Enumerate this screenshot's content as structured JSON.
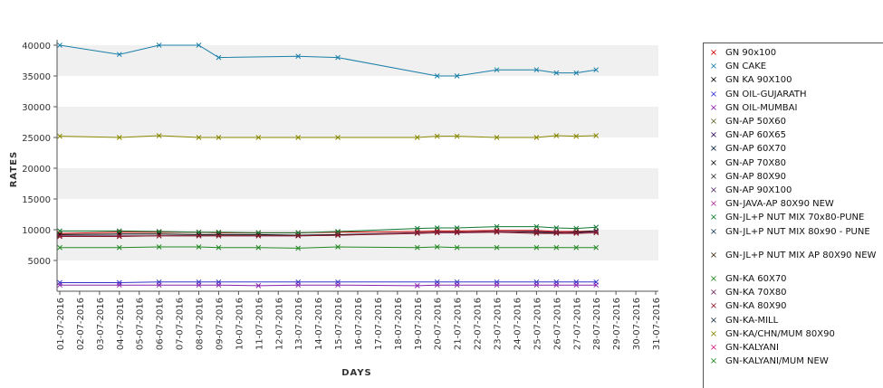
{
  "chart_data": {
    "type": "line",
    "title": "",
    "xlabel": "DAYS",
    "ylabel": "RATES",
    "ylim": [
      0,
      40000
    ],
    "yticks": [
      5000,
      10000,
      15000,
      20000,
      25000,
      30000,
      35000,
      40000
    ],
    "categories": [
      "01-07-2016",
      "02-07-2016",
      "03-07-2016",
      "04-07-2016",
      "05-07-2016",
      "06-07-2016",
      "07-07-2016",
      "08-07-2016",
      "09-07-2016",
      "10-07-2016",
      "11-07-2016",
      "12-07-2016",
      "13-07-2016",
      "14-07-2016",
      "15-07-2016",
      "16-07-2016",
      "17-07-2016",
      "18-07-2016",
      "19-07-2016",
      "20-07-2016",
      "21-07-2016",
      "22-07-2016",
      "23-07-2016",
      "24-07-2016",
      "25-07-2016",
      "26-07-2016",
      "27-07-2016",
      "28-07-2016",
      "29-07-2016",
      "30-07-2016",
      "31-07-2016"
    ],
    "grid": "alternating horizontal bands",
    "legend_position": "right",
    "series": [
      {
        "name": "GN 90x100",
        "color": "#cc0000",
        "values": [
          9400,
          null,
          null,
          9600,
          null,
          9600,
          null,
          9600,
          9500,
          null,
          9500,
          null,
          9500,
          null,
          9600,
          null,
          null,
          null,
          9700,
          9800,
          9800,
          null,
          9900,
          null,
          9900,
          9700,
          9700,
          9800,
          null,
          null,
          null
        ]
      },
      {
        "name": "GN CAKE",
        "color": "#1a7fa8",
        "values": [
          40000,
          null,
          null,
          38500,
          null,
          40000,
          null,
          40000,
          38000,
          null,
          null,
          null,
          38200,
          null,
          38000,
          null,
          null,
          null,
          null,
          35000,
          35000,
          null,
          36000,
          null,
          36000,
          35500,
          35500,
          36000,
          null,
          null,
          null
        ]
      },
      {
        "name": "GN KA 90X100",
        "color": "#000000",
        "values": [
          9200,
          null,
          null,
          9300,
          null,
          9300,
          null,
          9200,
          9200,
          null,
          9200,
          null,
          9100,
          null,
          9200,
          null,
          null,
          null,
          9500,
          9600,
          9600,
          null,
          9700,
          null,
          9600,
          9500,
          9600,
          9800,
          null,
          null,
          null
        ]
      },
      {
        "name": "GN OIL-GUJARATH",
        "color": "#3333cc",
        "values": [
          1400,
          null,
          null,
          1400,
          null,
          1500,
          null,
          1500,
          1500,
          null,
          null,
          null,
          1500,
          null,
          1500,
          null,
          null,
          null,
          null,
          1500,
          1500,
          null,
          1500,
          null,
          1500,
          1500,
          1500,
          1500,
          null,
          null,
          null
        ]
      },
      {
        "name": "GN OIL-MUMBAI",
        "color": "#8822aa",
        "values": [
          1000,
          null,
          null,
          1000,
          null,
          1000,
          null,
          1000,
          1000,
          null,
          900,
          null,
          1000,
          null,
          1000,
          null,
          null,
          null,
          900,
          1000,
          1000,
          null,
          1000,
          null,
          1000,
          1000,
          1000,
          1000,
          null,
          null,
          null
        ]
      },
      {
        "name": "GN-AP 50X60",
        "color": "#666633",
        "values": [
          null,
          null,
          null,
          null,
          null,
          null,
          null,
          null,
          null,
          null,
          null,
          null,
          null,
          null,
          null,
          null,
          null,
          null,
          null,
          null,
          null,
          null,
          null,
          null,
          null,
          null,
          null,
          null,
          null,
          null,
          null
        ]
      },
      {
        "name": "GN-AP 60X65",
        "color": "#2b0a55",
        "values": [
          null,
          null,
          null,
          null,
          null,
          null,
          null,
          null,
          null,
          null,
          null,
          null,
          null,
          null,
          null,
          null,
          null,
          null,
          null,
          null,
          null,
          null,
          null,
          null,
          null,
          null,
          null,
          null,
          null,
          null,
          null
        ]
      },
      {
        "name": "GN-AP 60X70",
        "color": "#0a2040",
        "values": [
          null,
          null,
          null,
          null,
          null,
          null,
          null,
          null,
          null,
          null,
          null,
          null,
          null,
          null,
          null,
          null,
          null,
          null,
          null,
          null,
          null,
          null,
          null,
          null,
          null,
          null,
          null,
          null,
          null,
          null,
          null
        ]
      },
      {
        "name": "GN-AP 70X80",
        "color": "#111111",
        "values": [
          null,
          null,
          null,
          null,
          null,
          null,
          null,
          null,
          null,
          null,
          null,
          null,
          null,
          null,
          null,
          null,
          null,
          null,
          null,
          null,
          null,
          null,
          null,
          null,
          null,
          null,
          null,
          null,
          null,
          null,
          null
        ]
      },
      {
        "name": "GN-AP 80X90",
        "color": "#333333",
        "values": [
          null,
          null,
          null,
          null,
          null,
          null,
          null,
          null,
          null,
          null,
          null,
          null,
          null,
          null,
          null,
          null,
          null,
          null,
          null,
          null,
          null,
          null,
          null,
          null,
          null,
          null,
          null,
          null,
          null,
          null,
          null
        ]
      },
      {
        "name": "GN-AP 90X100",
        "color": "#553366",
        "values": [
          null,
          null,
          null,
          null,
          null,
          null,
          null,
          null,
          null,
          null,
          null,
          null,
          null,
          null,
          null,
          null,
          null,
          null,
          null,
          null,
          null,
          null,
          null,
          null,
          null,
          null,
          null,
          null,
          null,
          null,
          null
        ]
      },
      {
        "name": "GN-JAVA-AP 80X90 NEW",
        "color": "#aa3399",
        "values": [
          null,
          null,
          null,
          null,
          null,
          null,
          null,
          null,
          null,
          null,
          null,
          null,
          null,
          null,
          null,
          null,
          null,
          null,
          null,
          null,
          null,
          null,
          null,
          null,
          null,
          null,
          null,
          null,
          null,
          null,
          null
        ]
      },
      {
        "name": "GN-JL+P NUT MIX 70x80-PUNE",
        "color": "#117733",
        "values": [
          9800,
          null,
          null,
          9800,
          null,
          9700,
          null,
          9600,
          9600,
          null,
          9500,
          null,
          9500,
          null,
          9700,
          null,
          null,
          null,
          10200,
          10300,
          10300,
          null,
          10500,
          null,
          10500,
          10300,
          10200,
          10400,
          null,
          null,
          null
        ]
      },
      {
        "name": "GN-JL+P NUT MIX 80x90 - PUNE",
        "color": "#1f3a5f",
        "values": [
          null,
          null,
          null,
          null,
          null,
          null,
          null,
          null,
          null,
          null,
          null,
          null,
          null,
          null,
          null,
          null,
          null,
          null,
          null,
          null,
          null,
          null,
          null,
          null,
          null,
          null,
          null,
          null,
          null,
          null,
          null
        ]
      },
      {
        "name": "GN-JL+P NUT MIX AP 80X90 NEW",
        "color": "#3b2a10",
        "values": [
          null,
          null,
          null,
          null,
          null,
          null,
          null,
          null,
          null,
          null,
          null,
          null,
          null,
          null,
          null,
          null,
          null,
          null,
          null,
          null,
          null,
          null,
          null,
          null,
          null,
          null,
          null,
          null,
          null,
          null,
          null
        ]
      },
      {
        "name": "GN-KA 60X70",
        "color": "#228822",
        "values": [
          7100,
          null,
          null,
          7100,
          null,
          7200,
          null,
          7200,
          7100,
          null,
          7100,
          null,
          7000,
          null,
          7200,
          null,
          null,
          null,
          7100,
          7200,
          7100,
          null,
          7100,
          null,
          7100,
          7100,
          7100,
          7100,
          null,
          null,
          null
        ]
      },
      {
        "name": "GN-KA 70X80",
        "color": "#6a2c5a",
        "values": [
          9000,
          null,
          null,
          9000,
          null,
          9000,
          null,
          9000,
          9000,
          null,
          9000,
          null,
          9000,
          null,
          9100,
          null,
          null,
          null,
          9500,
          9600,
          9600,
          null,
          9700,
          null,
          9700,
          9600,
          9500,
          9700,
          null,
          null,
          null
        ]
      },
      {
        "name": "GN-KA 80X90",
        "color": "#8b1a2b",
        "values": [
          8900,
          null,
          null,
          8900,
          null,
          9000,
          null,
          9000,
          9000,
          null,
          9000,
          null,
          9000,
          null,
          9100,
          null,
          null,
          null,
          9400,
          9500,
          9500,
          null,
          9600,
          null,
          9400,
          9400,
          9400,
          9500,
          null,
          null,
          null
        ]
      },
      {
        "name": "GN-KA-MILL",
        "color": "#223344",
        "values": [
          null,
          null,
          null,
          null,
          null,
          null,
          null,
          null,
          null,
          null,
          null,
          null,
          null,
          null,
          null,
          null,
          null,
          null,
          null,
          null,
          null,
          null,
          null,
          null,
          null,
          null,
          null,
          null,
          null,
          null,
          null
        ]
      },
      {
        "name": "GN-KA/CHN/MUM 80X90",
        "color": "#888800",
        "values": [
          25200,
          null,
          null,
          25000,
          null,
          25300,
          null,
          25000,
          25000,
          null,
          25000,
          null,
          25000,
          null,
          25000,
          null,
          null,
          null,
          25000,
          25200,
          25200,
          null,
          25000,
          null,
          25000,
          25300,
          25200,
          25300,
          null,
          null,
          null
        ]
      },
      {
        "name": "GN-KALYANI",
        "color": "#cc2288",
        "values": [
          null,
          null,
          null,
          null,
          null,
          null,
          null,
          null,
          null,
          null,
          null,
          null,
          null,
          null,
          null,
          null,
          null,
          null,
          null,
          null,
          null,
          null,
          null,
          null,
          null,
          null,
          null,
          null,
          null,
          null,
          null
        ]
      },
      {
        "name": "GN-KALYANI/MUM NEW",
        "color": "#228822",
        "values": [
          null,
          null,
          null,
          null,
          null,
          null,
          null,
          null,
          null,
          null,
          null,
          null,
          null,
          null,
          null,
          null,
          null,
          null,
          null,
          null,
          null,
          null,
          null,
          null,
          null,
          null,
          null,
          null,
          null,
          null,
          null
        ]
      }
    ]
  }
}
